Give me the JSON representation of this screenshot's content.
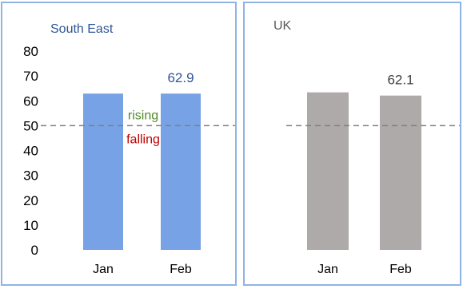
{
  "chart_data": [
    {
      "type": "bar",
      "title": "South East",
      "categories": [
        "Jan",
        "Feb"
      ],
      "values": [
        62.9,
        62.9
      ],
      "data_labels": [
        "",
        "62.9"
      ],
      "ylim": [
        0,
        80
      ],
      "yticks": [
        "0",
        "10",
        "20",
        "30",
        "40",
        "50",
        "60",
        "70",
        "80"
      ],
      "y_axis_shown": true,
      "threshold": 50,
      "threshold_labels": {
        "above": "rising",
        "below": "falling"
      },
      "grid": false,
      "colors": {
        "bar": "#77a2e6",
        "title": "#2e5596",
        "label": "#2e5596",
        "rising": "#4f8a2a",
        "falling": "#c00000",
        "threshold": "#808080"
      }
    },
    {
      "type": "bar",
      "title": "UK",
      "categories": [
        "Jan",
        "Feb"
      ],
      "values": [
        63.4,
        62.1
      ],
      "data_labels": [
        "",
        "62.1"
      ],
      "ylim": [
        0,
        80
      ],
      "y_axis_shown": false,
      "threshold": 50,
      "grid": false,
      "colors": {
        "bar": "#aeaaaa",
        "title": "#595959",
        "label": "#404040",
        "threshold": "#808080"
      }
    }
  ]
}
